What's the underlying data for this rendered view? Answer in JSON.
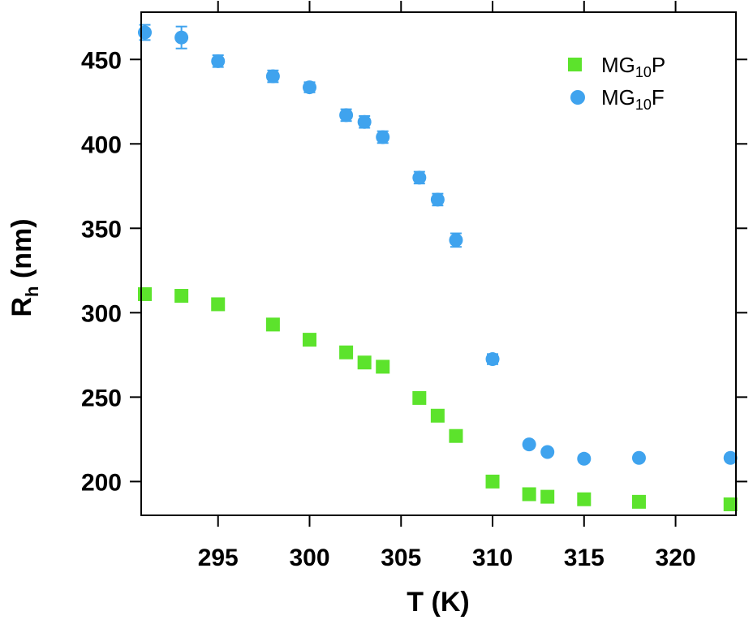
{
  "chart_data": {
    "type": "scatter",
    "xlabel": "T (K)",
    "ylabel": {
      "main": "R",
      "sub": "h",
      "rest": " (nm)"
    },
    "xlim": [
      290.8,
      323.3
    ],
    "ylim": [
      180,
      478
    ],
    "x_ticks": [
      295,
      300,
      305,
      310,
      315,
      320
    ],
    "y_ticks": [
      200,
      250,
      300,
      350,
      400,
      450
    ],
    "legend_position": "top-right",
    "grid": false,
    "series": [
      {
        "name": {
          "main": "MG",
          "sub": "10",
          "rest": "P"
        },
        "marker": "square",
        "color": "#5ce32c",
        "x": [
          291,
          293,
          295,
          298,
          300,
          302,
          303,
          304,
          306,
          307,
          308,
          310,
          312,
          313,
          315,
          318,
          323
        ],
        "y": [
          311,
          310,
          305,
          293,
          284,
          276.5,
          270.5,
          268,
          249.5,
          239,
          227,
          200,
          192.5,
          191,
          189.5,
          188,
          186.5
        ]
      },
      {
        "name": {
          "main": "MG",
          "sub": "10",
          "rest": "F"
        },
        "marker": "circle",
        "color": "#3fa3ee",
        "x": [
          291,
          293,
          295,
          298,
          300,
          302,
          303,
          304,
          306,
          307,
          308,
          310,
          312,
          313,
          315,
          318,
          323
        ],
        "y": [
          466,
          463,
          449,
          440,
          433.5,
          417,
          413,
          404,
          380,
          367,
          343,
          272.5,
          222,
          217.5,
          213.5,
          214,
          214
        ],
        "yerr": [
          4.5,
          6.5,
          3.5,
          3.5,
          3,
          3.5,
          3.5,
          3.5,
          3.5,
          3.5,
          4,
          3,
          2,
          2,
          2,
          2,
          2
        ]
      }
    ]
  }
}
